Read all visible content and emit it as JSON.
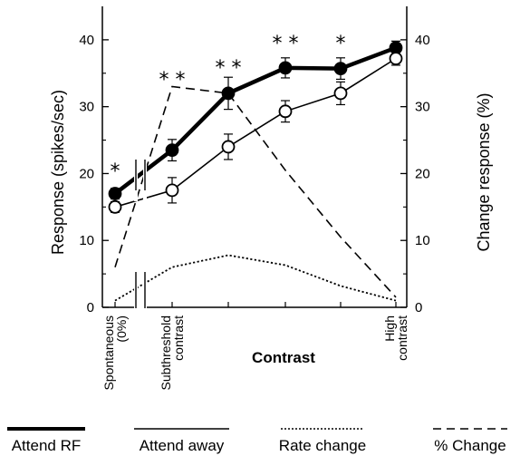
{
  "chart_data": {
    "type": "line",
    "ylabel_left": "Response (spikes/sec)",
    "ylabel_right": "Change response (%)",
    "xlabel": "Contrast",
    "ylim_left": [
      0,
      45
    ],
    "ylim_right": [
      0,
      45
    ],
    "yticks_left": [
      0,
      10,
      20,
      30,
      40
    ],
    "yticks_right": [
      0,
      10,
      20,
      30,
      40
    ],
    "x_categories": [
      {
        "lines": [
          "Spontaneous",
          "(0%)"
        ]
      },
      {
        "lines": [
          "Subthreshold",
          "contrast"
        ]
      },
      {
        "lines": [
          "High",
          "contrast"
        ]
      }
    ],
    "series": [
      {
        "name": "Attend RF",
        "axis": "left",
        "style": "thick-filled",
        "x": [
          0,
          1,
          2,
          3,
          4,
          5
        ],
        "y": [
          17.0,
          23.5,
          32.0,
          35.8,
          35.7,
          38.8
        ],
        "err": [
          0.8,
          1.6,
          2.4,
          1.5,
          1.6,
          1.0
        ]
      },
      {
        "name": "Attend away",
        "axis": "left",
        "style": "thin-open",
        "x": [
          0,
          1,
          2,
          3,
          4,
          5
        ],
        "y": [
          15.0,
          17.5,
          24.0,
          29.3,
          32.0,
          37.2
        ],
        "err": [
          0.8,
          1.9,
          1.9,
          1.6,
          1.7,
          1.0
        ]
      },
      {
        "name": "Rate change",
        "axis": "right",
        "style": "dotted",
        "x": [
          0,
          1,
          2,
          3,
          4,
          5
        ],
        "y": [
          1.0,
          6.0,
          7.8,
          6.3,
          3.2,
          1.0
        ]
      },
      {
        "name": "% Change",
        "axis": "right",
        "style": "dashed",
        "x": [
          0,
          1,
          2,
          3,
          4,
          5
        ],
        "y": [
          6.0,
          33.0,
          32.0,
          20.5,
          10.5,
          1.5
        ]
      }
    ],
    "significance": [
      {
        "x": 0,
        "label": "*"
      },
      {
        "x": 1,
        "label": "**"
      },
      {
        "x": 2,
        "label": "**"
      },
      {
        "x": 3,
        "label": "**"
      },
      {
        "x": 4,
        "label": "*"
      }
    ],
    "axis_break": true,
    "grid": false,
    "legend_position": "bottom"
  }
}
